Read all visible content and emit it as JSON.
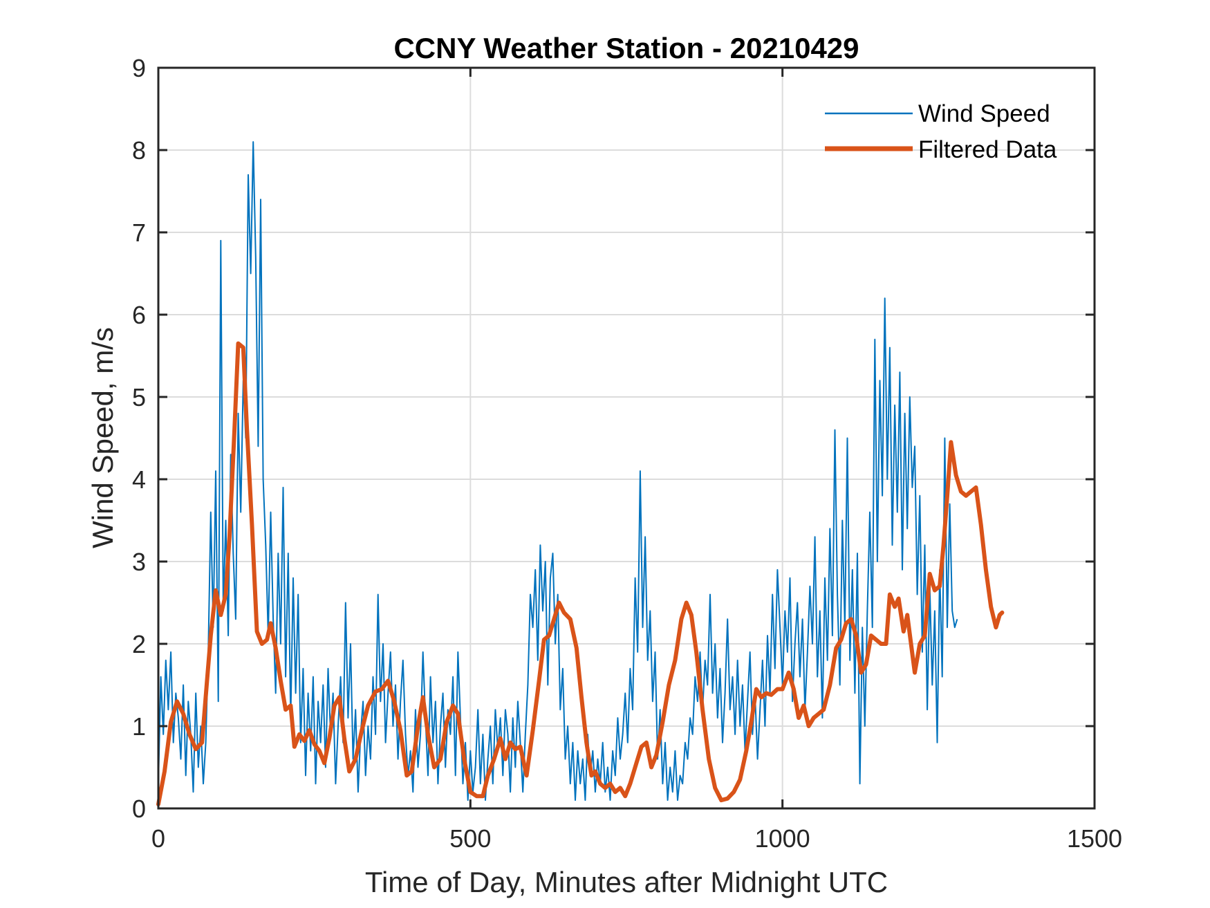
{
  "chart_data": {
    "type": "line",
    "title": "CCNY Weather Station - 20210429",
    "xlabel": "Time of Day, Minutes after Midnight UTC",
    "ylabel": "Wind Speed, m/s",
    "xlim": [
      0,
      1500
    ],
    "ylim": [
      0,
      9
    ],
    "xticks": [
      0,
      500,
      1000,
      1500
    ],
    "xtick_labels": [
      "0",
      "500",
      "1000",
      "1500"
    ],
    "yticks": [
      0,
      1,
      2,
      3,
      4,
      5,
      6,
      7,
      8,
      9
    ],
    "ytick_labels": [
      "0",
      "1",
      "2",
      "3",
      "4",
      "5",
      "6",
      "7",
      "8",
      "9"
    ],
    "grid": true,
    "legend_position": "top-right",
    "legend": [
      "Wind Speed",
      "Filtered Data"
    ],
    "series": [
      {
        "name": "Wind Speed",
        "color": "#0072bd",
        "x_step": 4,
        "x_start": 0,
        "values": [
          0.3,
          1.6,
          0.9,
          1.8,
          1.2,
          1.9,
          0.8,
          1.4,
          1.1,
          0.6,
          1.5,
          0.4,
          1.3,
          0.9,
          0.2,
          1.4,
          0.5,
          1.0,
          0.3,
          0.8,
          1.9,
          3.6,
          2.2,
          4.1,
          1.3,
          6.9,
          2.4,
          3.5,
          2.1,
          4.3,
          3.1,
          2.3,
          4.8,
          3.6,
          5.2,
          4.5,
          7.7,
          6.5,
          8.1,
          6.7,
          4.4,
          7.4,
          4.0,
          3.2,
          2.1,
          3.6,
          2.3,
          1.4,
          3.1,
          2.0,
          3.9,
          1.6,
          3.1,
          1.1,
          2.8,
          1.4,
          2.6,
          0.8,
          1.7,
          0.4,
          1.4,
          0.7,
          1.6,
          0.3,
          1.3,
          0.8,
          1.5,
          0.5,
          1.7,
          0.9,
          1.4,
          0.3,
          1.0,
          1.6,
          0.8,
          2.5,
          1.1,
          2.0,
          0.6,
          1.2,
          0.2,
          0.9,
          1.3,
          0.4,
          1.0,
          0.6,
          1.6,
          0.9,
          2.6,
          1.3,
          2.0,
          0.8,
          1.4,
          1.9,
          1.0,
          1.5,
          0.6,
          1.3,
          1.8,
          0.9,
          0.4,
          0.7,
          0.2,
          1.2,
          0.5,
          0.9,
          1.9,
          1.1,
          0.4,
          1.6,
          0.8,
          1.3,
          0.3,
          1.0,
          1.4,
          0.5,
          1.2,
          0.9,
          1.6,
          0.4,
          1.9,
          1.1,
          0.3,
          0.8,
          0.1,
          0.7,
          0.2,
          0.5,
          1.2,
          0.3,
          0.9,
          0.1,
          0.6,
          1.0,
          0.3,
          1.2,
          0.7,
          1.1,
          0.4,
          1.2,
          0.9,
          0.2,
          1.1,
          0.5,
          1.3,
          0.8,
          0.2,
          0.9,
          1.5,
          2.6,
          2.2,
          2.9,
          1.8,
          3.2,
          2.4,
          3.0,
          1.5,
          2.8,
          3.1,
          2.0,
          2.6,
          1.2,
          1.7,
          0.6,
          1.0,
          0.3,
          0.8,
          0.1,
          0.7,
          0.3,
          0.6,
          0.1,
          0.9,
          0.4,
          0.7,
          0.2,
          0.6,
          0.3,
          0.8,
          0.2,
          0.5,
          0.1,
          0.7,
          0.4,
          1.1,
          0.6,
          0.9,
          1.4,
          0.8,
          1.7,
          1.2,
          2.8,
          1.9,
          4.1,
          2.2,
          3.3,
          1.8,
          2.4,
          1.3,
          1.9,
          0.6,
          1.2,
          0.3,
          0.8,
          0.1,
          0.5,
          0.2,
          0.7,
          0.1,
          0.4,
          0.3,
          0.8,
          0.6,
          1.1,
          0.9,
          1.6,
          1.3,
          1.9,
          1.2,
          1.8,
          1.5,
          2.6,
          1.4,
          2.0,
          1.1,
          1.7,
          0.8,
          1.4,
          2.3,
          1.2,
          1.6,
          0.9,
          1.8,
          1.0,
          1.5,
          0.7,
          1.3,
          1.9,
          0.9,
          1.4,
          0.6,
          1.2,
          1.8,
          1.0,
          2.1,
          1.4,
          2.6,
          1.7,
          2.9,
          2.2,
          1.5,
          2.4,
          1.9,
          2.8,
          1.3,
          2.0,
          2.5,
          1.6,
          2.3,
          1.2,
          1.9,
          2.7,
          2.0,
          3.3,
          1.6,
          2.4,
          1.1,
          2.8,
          1.8,
          3.4,
          2.1,
          4.6,
          2.6,
          1.5,
          3.5,
          2.2,
          4.5,
          1.8,
          2.9,
          1.4,
          3.1,
          0.3,
          2.2,
          1.0,
          2.4,
          3.6,
          2.2,
          5.7,
          3.0,
          5.2,
          3.8,
          6.2,
          4.0,
          5.6,
          3.2,
          4.9,
          3.6,
          5.3,
          2.9,
          4.8,
          3.4,
          5.0,
          3.9,
          4.4,
          2.6,
          3.8,
          1.9,
          3.2,
          1.2,
          2.7,
          1.5,
          2.4,
          0.8,
          2.9,
          1.6,
          4.5,
          2.2,
          3.7,
          2.4,
          2.2,
          2.3
        ]
      },
      {
        "name": "Filtered Data",
        "color": "#d95319",
        "points": [
          [
            0,
            0.05
          ],
          [
            10,
            0.45
          ],
          [
            20,
            1.05
          ],
          [
            30,
            1.3
          ],
          [
            40,
            1.15
          ],
          [
            50,
            0.9
          ],
          [
            60,
            0.72
          ],
          [
            70,
            0.8
          ],
          [
            78,
            1.55
          ],
          [
            84,
            2.1
          ],
          [
            92,
            2.65
          ],
          [
            100,
            2.35
          ],
          [
            108,
            2.6
          ],
          [
            114,
            3.3
          ],
          [
            122,
            4.6
          ],
          [
            128,
            5.65
          ],
          [
            136,
            5.6
          ],
          [
            142,
            4.6
          ],
          [
            150,
            3.45
          ],
          [
            158,
            2.15
          ],
          [
            166,
            2.0
          ],
          [
            174,
            2.05
          ],
          [
            180,
            2.25
          ],
          [
            188,
            1.95
          ],
          [
            196,
            1.55
          ],
          [
            204,
            1.2
          ],
          [
            212,
            1.25
          ],
          [
            218,
            0.75
          ],
          [
            226,
            0.9
          ],
          [
            234,
            0.82
          ],
          [
            242,
            0.95
          ],
          [
            250,
            0.78
          ],
          [
            258,
            0.7
          ],
          [
            266,
            0.55
          ],
          [
            274,
            0.85
          ],
          [
            282,
            1.25
          ],
          [
            290,
            1.35
          ],
          [
            298,
            0.85
          ],
          [
            306,
            0.45
          ],
          [
            316,
            0.6
          ],
          [
            326,
            0.95
          ],
          [
            336,
            1.25
          ],
          [
            348,
            1.42
          ],
          [
            358,
            1.45
          ],
          [
            368,
            1.55
          ],
          [
            378,
            1.3
          ],
          [
            388,
            0.95
          ],
          [
            398,
            0.4
          ],
          [
            406,
            0.45
          ],
          [
            416,
            1.0
          ],
          [
            424,
            1.35
          ],
          [
            432,
            0.9
          ],
          [
            442,
            0.5
          ],
          [
            452,
            0.6
          ],
          [
            462,
            1.05
          ],
          [
            472,
            1.25
          ],
          [
            480,
            1.15
          ],
          [
            490,
            0.6
          ],
          [
            500,
            0.2
          ],
          [
            510,
            0.15
          ],
          [
            520,
            0.15
          ],
          [
            528,
            0.4
          ],
          [
            538,
            0.6
          ],
          [
            548,
            0.85
          ],
          [
            556,
            0.6
          ],
          [
            564,
            0.8
          ],
          [
            572,
            0.72
          ],
          [
            580,
            0.75
          ],
          [
            590,
            0.4
          ],
          [
            600,
            0.95
          ],
          [
            610,
            1.55
          ],
          [
            618,
            2.05
          ],
          [
            626,
            2.1
          ],
          [
            634,
            2.3
          ],
          [
            642,
            2.5
          ],
          [
            650,
            2.38
          ],
          [
            660,
            2.3
          ],
          [
            670,
            1.95
          ],
          [
            678,
            1.35
          ],
          [
            686,
            0.8
          ],
          [
            694,
            0.4
          ],
          [
            700,
            0.45
          ],
          [
            708,
            0.3
          ],
          [
            716,
            0.25
          ],
          [
            724,
            0.3
          ],
          [
            732,
            0.2
          ],
          [
            740,
            0.25
          ],
          [
            748,
            0.15
          ],
          [
            756,
            0.3
          ],
          [
            766,
            0.55
          ],
          [
            774,
            0.75
          ],
          [
            782,
            0.8
          ],
          [
            790,
            0.5
          ],
          [
            798,
            0.65
          ],
          [
            808,
            1.05
          ],
          [
            818,
            1.5
          ],
          [
            828,
            1.8
          ],
          [
            838,
            2.3
          ],
          [
            846,
            2.5
          ],
          [
            854,
            2.35
          ],
          [
            862,
            1.9
          ],
          [
            872,
            1.2
          ],
          [
            882,
            0.6
          ],
          [
            892,
            0.25
          ],
          [
            902,
            0.1
          ],
          [
            912,
            0.12
          ],
          [
            922,
            0.2
          ],
          [
            932,
            0.35
          ],
          [
            942,
            0.7
          ],
          [
            950,
            1.05
          ],
          [
            958,
            1.45
          ],
          [
            966,
            1.35
          ],
          [
            974,
            1.4
          ],
          [
            982,
            1.38
          ],
          [
            992,
            1.45
          ],
          [
            1000,
            1.45
          ],
          [
            1010,
            1.65
          ],
          [
            1018,
            1.45
          ],
          [
            1026,
            1.1
          ],
          [
            1034,
            1.25
          ],
          [
            1042,
            1.0
          ],
          [
            1050,
            1.1
          ],
          [
            1058,
            1.15
          ],
          [
            1066,
            1.2
          ],
          [
            1076,
            1.5
          ],
          [
            1086,
            1.95
          ],
          [
            1094,
            2.05
          ],
          [
            1102,
            2.25
          ],
          [
            1110,
            2.3
          ],
          [
            1118,
            2.1
          ],
          [
            1126,
            1.65
          ],
          [
            1134,
            1.75
          ],
          [
            1142,
            2.1
          ],
          [
            1150,
            2.05
          ],
          [
            1158,
            2.0
          ],
          [
            1166,
            2.0
          ],
          [
            1172,
            2.6
          ],
          [
            1180,
            2.45
          ],
          [
            1186,
            2.55
          ],
          [
            1194,
            2.15
          ],
          [
            1200,
            2.35
          ],
          [
            1206,
            2.0
          ],
          [
            1212,
            1.65
          ],
          [
            1220,
            2.0
          ],
          [
            1228,
            2.1
          ],
          [
            1236,
            2.85
          ],
          [
            1244,
            2.65
          ],
          [
            1252,
            2.7
          ],
          [
            1258,
            3.2
          ],
          [
            1264,
            3.8
          ],
          [
            1270,
            4.45
          ],
          [
            1278,
            4.05
          ],
          [
            1286,
            3.85
          ],
          [
            1294,
            3.8
          ],
          [
            1302,
            3.85
          ],
          [
            1310,
            3.9
          ],
          [
            1318,
            3.45
          ],
          [
            1326,
            2.9
          ],
          [
            1334,
            2.45
          ],
          [
            1342,
            2.2
          ],
          [
            1348,
            2.35
          ],
          [
            1352,
            2.38
          ]
        ]
      }
    ]
  }
}
